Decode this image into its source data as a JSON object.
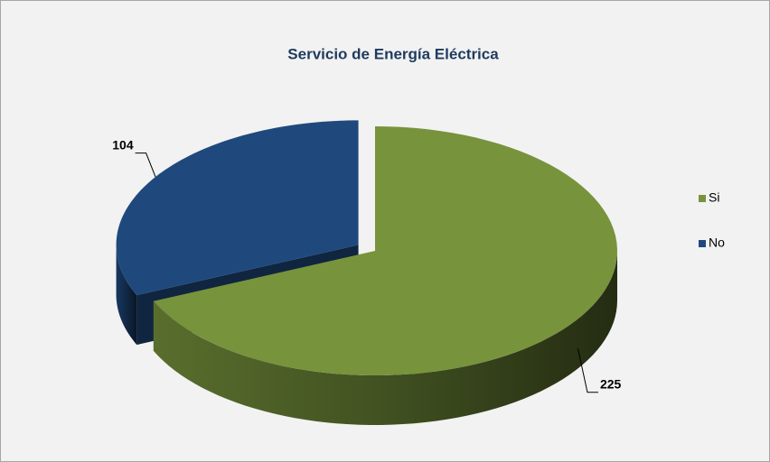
{
  "chart_data": {
    "type": "pie",
    "title": "Servicio de Energía Eléctrica",
    "categories": [
      "Si",
      "No"
    ],
    "values": [
      225,
      104
    ],
    "colors": [
      "#77933c",
      "#1f497d"
    ],
    "legend": "right"
  }
}
